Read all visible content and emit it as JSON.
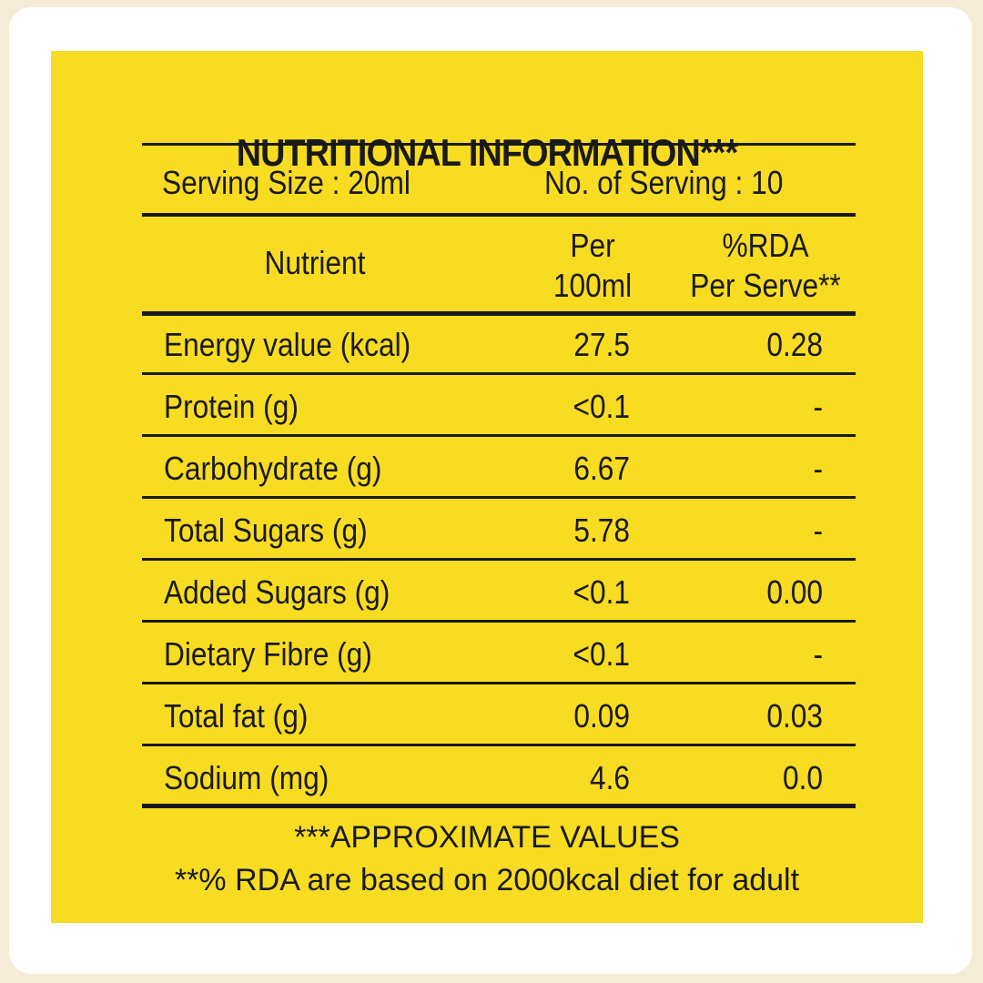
{
  "title": "NUTRITIONAL INFORMATION***",
  "serving": {
    "size": "Serving Size : 20ml",
    "count": "No. of Serving : 10"
  },
  "headers": {
    "nutrient": "Nutrient",
    "per_line1": "Per",
    "per_line2": "100ml",
    "rda_line1": "%RDA",
    "rda_line2": "Per Serve**"
  },
  "rows": [
    {
      "nutrient": "Energy value (kcal)",
      "per100": "27.5",
      "rda": "0.28"
    },
    {
      "nutrient": "Protein (g)",
      "per100": "<0.1",
      "rda": "-"
    },
    {
      "nutrient": "Carbohydrate (g)",
      "per100": "6.67",
      "rda": "-"
    },
    {
      "nutrient": "Total Sugars (g)",
      "per100": "5.78",
      "rda": "-"
    },
    {
      "nutrient": "Added Sugars (g)",
      "per100": "<0.1",
      "rda": "0.00"
    },
    {
      "nutrient": "Dietary Fibre (g)",
      "per100": "<0.1",
      "rda": "-"
    },
    {
      "nutrient": "Total fat (g)",
      "per100": "0.09",
      "rda": "0.03"
    },
    {
      "nutrient": "Sodium (mg)",
      "per100": "4.6",
      "rda": "0.0"
    }
  ],
  "footnotes": {
    "line1": "***APPROXIMATE VALUES",
    "line2": "**% RDA are based on 2000kcal diet for adult"
  },
  "colors": {
    "panel": "#f8dc22",
    "text": "#1a1a1a",
    "background": "#f5ecd7"
  }
}
